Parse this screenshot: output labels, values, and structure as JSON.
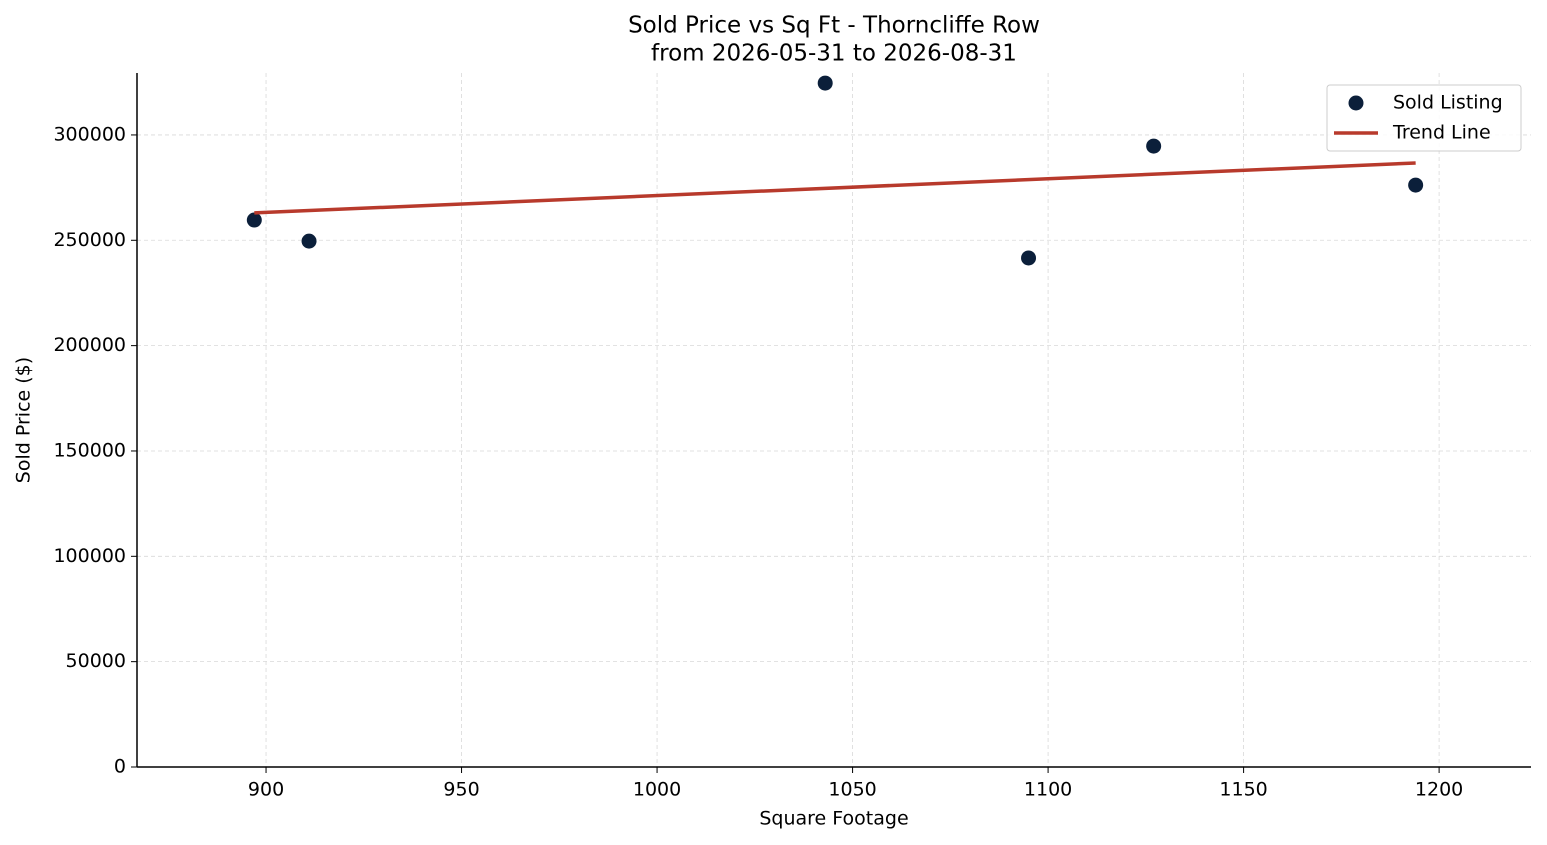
{
  "chart_data": {
    "type": "scatter",
    "title": "Sold Price vs Sq Ft - Thorncliffe Row",
    "subtitle": "from 2026-05-31 to 2026-08-31",
    "xlabel": "Square Footage",
    "ylabel": "Sold Price ($)",
    "xlim": [
      867,
      1223.5
    ],
    "ylim": [
      0,
      329400
    ],
    "xticks": [
      900,
      950,
      1000,
      1050,
      1100,
      1150,
      1200
    ],
    "yticks": [
      0,
      50000,
      100000,
      150000,
      200000,
      250000,
      300000
    ],
    "grid": true,
    "legend": "upper right",
    "series": [
      {
        "name": "Sold Listing",
        "type": "scatter",
        "color": "#0b1f3a",
        "x": [
          897,
          911,
          1043,
          1095,
          1127,
          1194
        ],
        "values": [
          259600,
          249600,
          324600,
          241600,
          294700,
          276200
        ]
      },
      {
        "name": "Trend Line",
        "type": "line",
        "color": "#b83a2c",
        "x": [
          897,
          1194
        ],
        "values": [
          263000,
          286700
        ]
      }
    ]
  }
}
